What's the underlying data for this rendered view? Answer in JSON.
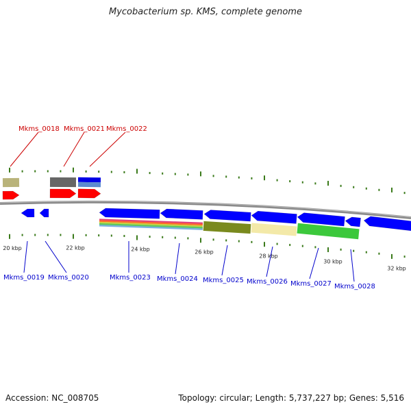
{
  "title": "Mycobacterium sp. KMS, complete genome",
  "footer": {
    "accession": "Accession: NC_008705",
    "summary": "Topology: circular; Length: 5,737,227 bp; Genes: 5,516"
  },
  "colors": {
    "forward_gene": "#ff0000",
    "reverse_gene": "#0000ff",
    "forward_label": "#cc0000",
    "reverse_label": "#0000cc",
    "backbone": "#888888",
    "tick": "#3a7a1a"
  },
  "tick_labels": [
    "20 kbp",
    "22 kbp",
    "24 kbp",
    "26 kbp",
    "28 kbp",
    "30 kbp",
    "32 kbp"
  ],
  "forward_labels": [
    "Mkms_0018",
    "Mkms_0021",
    "Mkms_0022"
  ],
  "reverse_labels": [
    "Mkms_0019",
    "Mkms_0020",
    "Mkms_0023",
    "Mkms_0024",
    "Mkms_0025",
    "Mkms_0026",
    "Mkms_0027",
    "Mkms_0028"
  ]
}
